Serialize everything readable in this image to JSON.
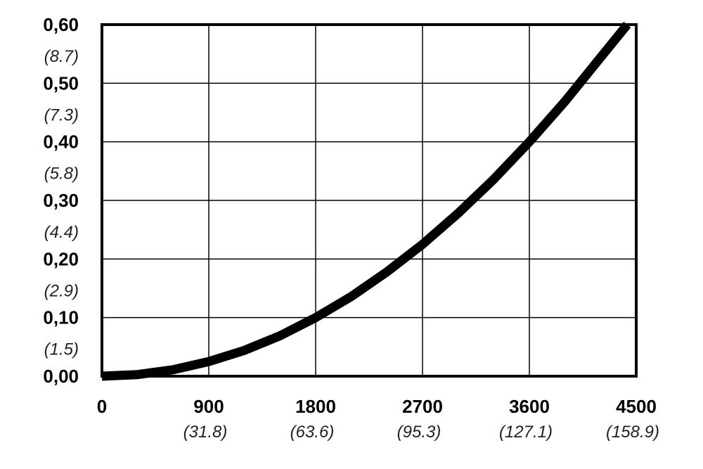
{
  "chart_data": {
    "type": "line",
    "title": "",
    "xlabel": "",
    "ylabel": "",
    "xlim": [
      0,
      4500
    ],
    "ylim": [
      0,
      0.6
    ],
    "grid": true,
    "legend": "none",
    "x_ticks": [
      {
        "label": "0",
        "sub": ""
      },
      {
        "label": "900",
        "sub": "(31.8)"
      },
      {
        "label": "1800",
        "sub": "(63.6)"
      },
      {
        "label": "2700",
        "sub": "(95.3)"
      },
      {
        "label": "3600",
        "sub": "(127.1)"
      },
      {
        "label": "4500",
        "sub": "(158.9)"
      }
    ],
    "y_ticks": [
      {
        "label": "0,00",
        "sub": ""
      },
      {
        "label": "0,10",
        "sub": "(1.5)"
      },
      {
        "label": "0,20",
        "sub": "(2.9)"
      },
      {
        "label": "0,30",
        "sub": "(4.4)"
      },
      {
        "label": "0,40",
        "sub": "(5.8)"
      },
      {
        "label": "0,50",
        "sub": "(7.3)"
      },
      {
        "label": "0,60",
        "sub": "(8.7)"
      }
    ],
    "series": [
      {
        "x": [
          0,
          300,
          600,
          900,
          1200,
          1500,
          1800,
          2100,
          2400,
          2700,
          3000,
          3300,
          3600,
          3900,
          4200,
          4425
        ],
        "y": [
          0.0,
          0.0028,
          0.011,
          0.025,
          0.044,
          0.069,
          0.1,
          0.136,
          0.178,
          0.225,
          0.278,
          0.336,
          0.4,
          0.469,
          0.544,
          0.6
        ]
      }
    ],
    "colors": {
      "line": "#000000",
      "grid": "#000000",
      "axes": "#000000"
    }
  }
}
